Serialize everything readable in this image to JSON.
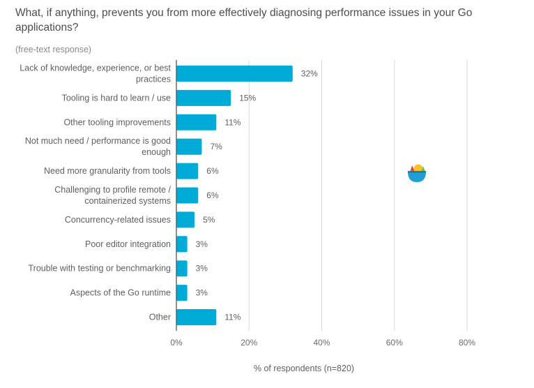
{
  "chart_data": {
    "type": "bar",
    "orientation": "horizontal",
    "title": "What, if anything, prevents you from more effectively diagnosing performance issues in your Go applications?",
    "subtitle": "(free-text response)",
    "xlabel": "% of respondents (n=820)",
    "ylabel": "",
    "xlim": [
      0,
      80
    ],
    "xticks": [
      "0%",
      "20%",
      "40%",
      "60%",
      "80%"
    ],
    "xtick_values": [
      0,
      20,
      40,
      60,
      80
    ],
    "grid": true,
    "bar_color": "#00acd7",
    "categories": [
      [
        "Lack of knowledge, experience, or best",
        "practices"
      ],
      [
        "Tooling is hard to learn / use"
      ],
      [
        "Other tooling improvements"
      ],
      [
        "Not much need / performance is good",
        "enough"
      ],
      [
        "Need more granularity from tools"
      ],
      [
        "Challenging to profile remote /",
        "containerized systems"
      ],
      [
        "Concurrency-related issues"
      ],
      [
        "Poor editor integration"
      ],
      [
        "Trouble with testing or benchmarking"
      ],
      [
        "Aspects of the Go runtime"
      ],
      [
        "Other"
      ]
    ],
    "values": [
      32,
      15,
      11,
      7,
      6,
      6,
      5,
      3,
      3,
      3,
      11
    ],
    "value_labels": [
      "32%",
      "15%",
      "11%",
      "7%",
      "6%",
      "6%",
      "5%",
      "3%",
      "3%",
      "3%",
      "11%"
    ]
  },
  "decoration": {
    "icon": "gopher-bowl-logo-icon"
  }
}
